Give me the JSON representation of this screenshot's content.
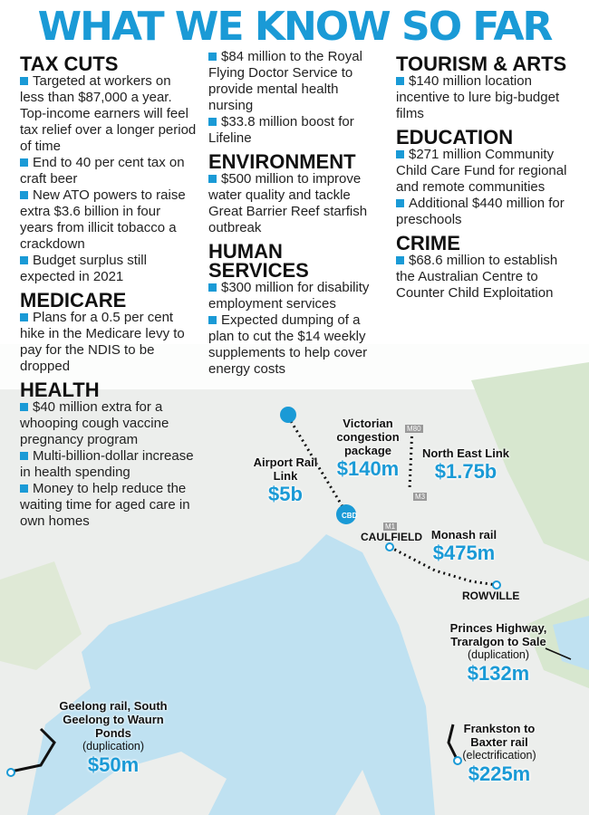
{
  "title": "WHAT WE KNOW SO FAR",
  "columns": [
    [
      {
        "heading": "TAX CUTS",
        "items": [
          "Targeted at workers on less than $87,000 a year. Top-income earners will feel tax relief over a longer period of time",
          "End to 40 per cent tax on craft beer",
          "New ATO powers to raise extra $3.6 billion in four years from illicit tobacco a crackdown",
          "Budget surplus still expected in 2021"
        ]
      },
      {
        "heading": "MEDICARE",
        "items": [
          "Plans for a 0.5 per cent hike in the Medicare levy to pay for the NDIS to be dropped"
        ]
      },
      {
        "heading": "HEALTH",
        "items": [
          "$40 million extra for a whooping cough vaccine pregnancy program",
          "Multi-billion-dollar increase in health spending",
          "Money to help reduce the waiting time for aged care in own homes"
        ]
      }
    ],
    [
      {
        "items": [
          "$84 million to the Royal Flying Doctor Service to provide mental health nursing",
          "$33.8 million boost for Lifeline"
        ]
      },
      {
        "heading": "ENVIRONMENT",
        "items": [
          "$500 million to improve water quality and tackle Great Barrier Reef starfish outbreak"
        ]
      },
      {
        "heading": "HUMAN SERVICES",
        "items": [
          "$300 million for disability employment services",
          "Expected dumping of a plan to cut the $14 weekly supplements to help cover energy costs"
        ]
      }
    ],
    [
      {
        "heading": "TOURISM & ARTS",
        "items": [
          "$140 million location incentive to lure big-budget films"
        ]
      },
      {
        "heading": "EDUCATION",
        "items": [
          "$271 million Community Child Care Fund for regional and remote communities",
          "Additional $440 million for preschools"
        ]
      },
      {
        "heading": "CRIME",
        "items": [
          "$68.6 million to establish the Australian Centre to Counter Child Exploitation"
        ]
      }
    ]
  ],
  "projects": [
    {
      "name": "Airport Rail Link",
      "amount": "$5b"
    },
    {
      "name": "Victorian congestion package",
      "amount": "$140m"
    },
    {
      "name": "North East Link",
      "amount": "$1.75b"
    },
    {
      "name": "Monash rail",
      "amount": "$475m"
    },
    {
      "name": "Princes Highway, Traralgon to Sale",
      "note": "(duplication)",
      "amount": "$132m"
    },
    {
      "name": "Geelong rail, South Geelong to Waurn Ponds",
      "note": "(duplication)",
      "amount": "$50m"
    },
    {
      "name": "Frankston to Baxter rail",
      "note": "(electrification)",
      "amount": "$225m"
    }
  ],
  "places": [
    "CAULFIELD",
    "ROWVILLE",
    "CBD",
    "M80",
    "M3",
    "M1"
  ]
}
